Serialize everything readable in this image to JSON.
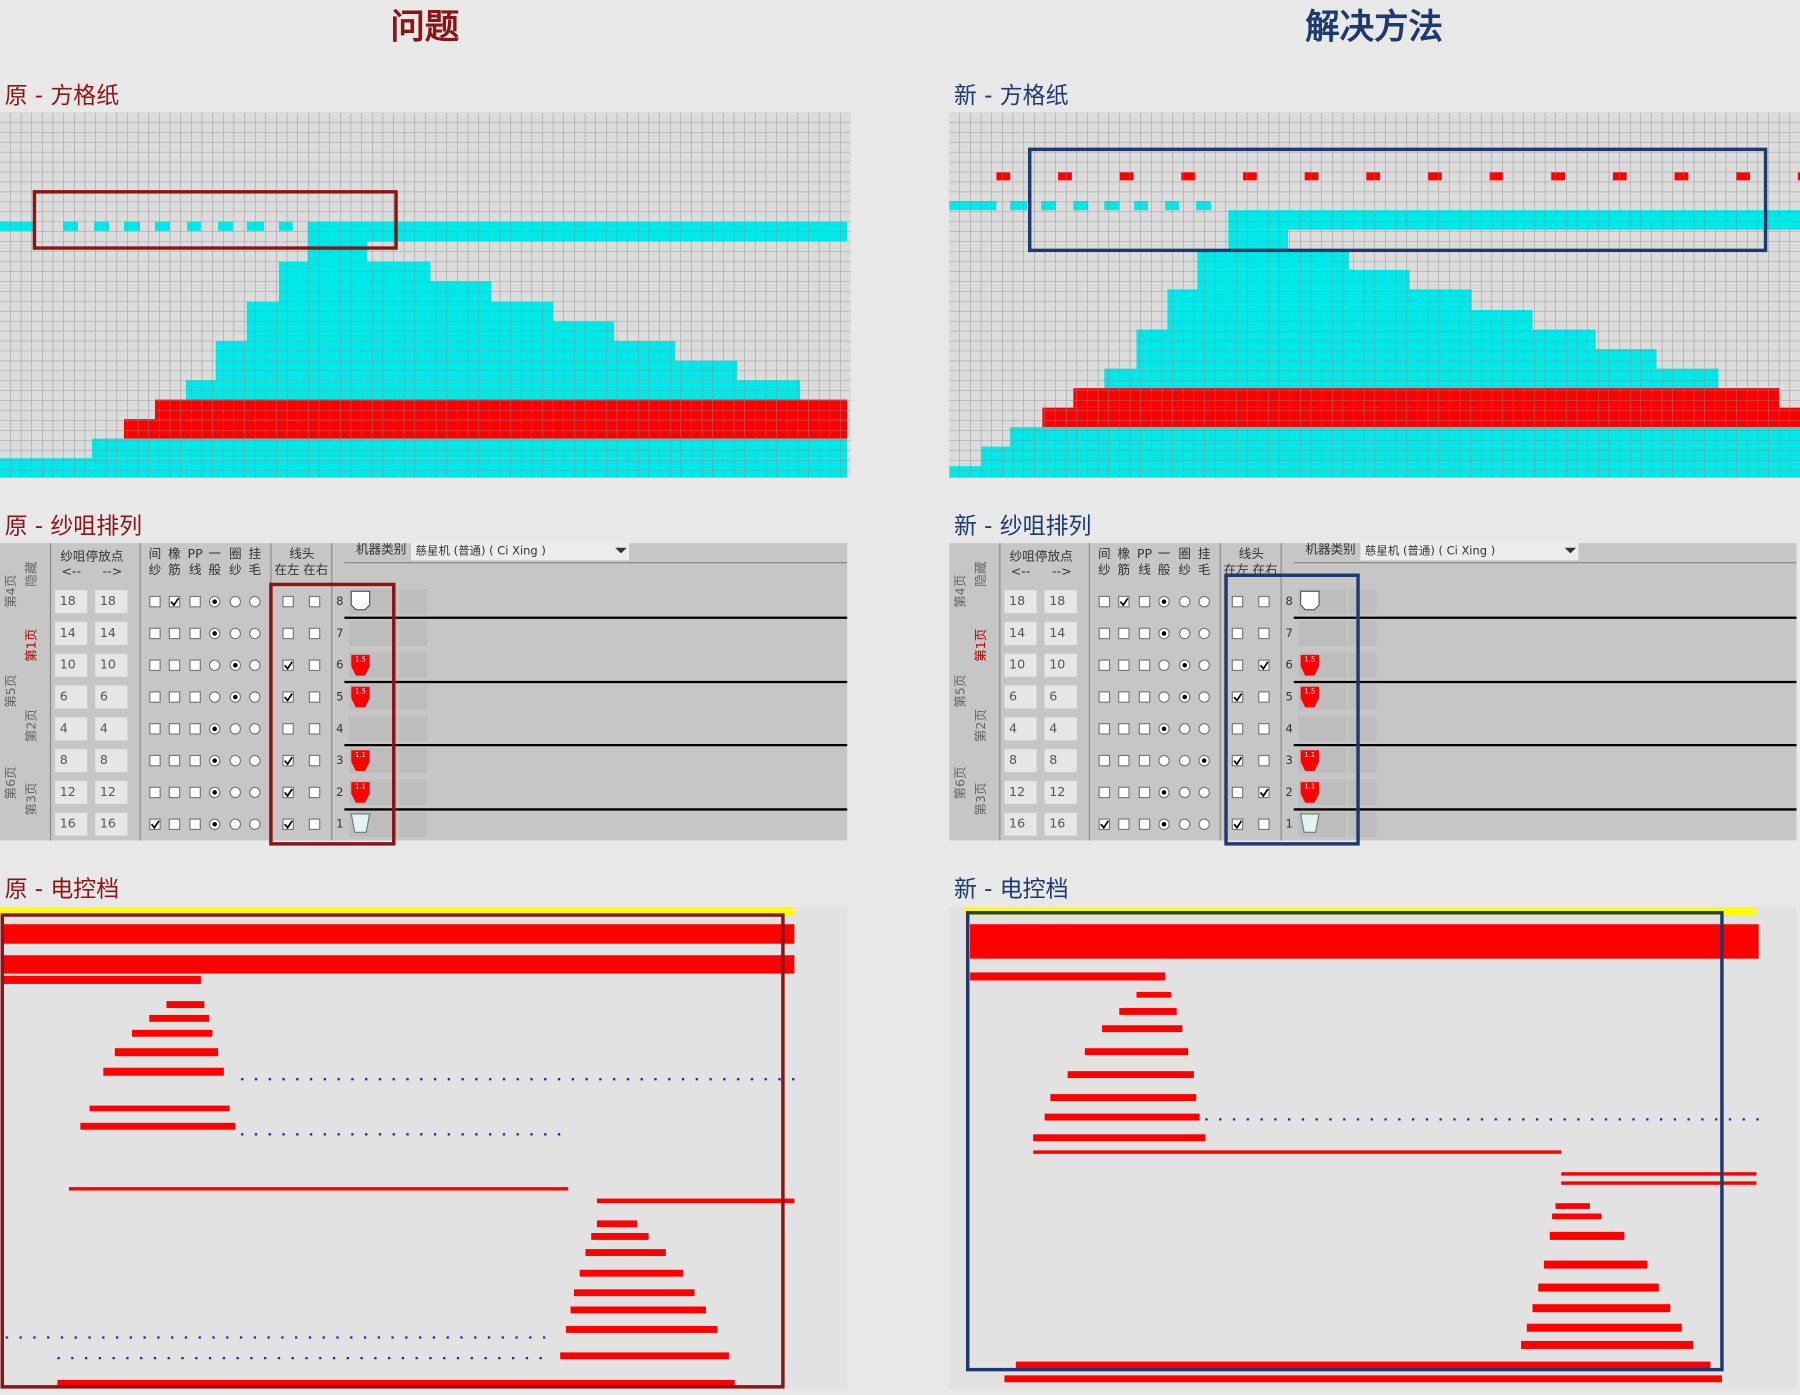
{
  "header": {
    "problem": "问题",
    "solution": "解决方法"
  },
  "table": {
    "stop_header": "纱咀停放点",
    "left_arrow": "<--",
    "right_arrow": "-->",
    "columns": [
      [
        "间",
        "纱"
      ],
      [
        "橡",
        "筋"
      ],
      [
        "PP",
        "线"
      ],
      [
        "一",
        "般"
      ],
      [
        "圈",
        "纱"
      ],
      [
        "挂",
        "毛"
      ]
    ],
    "linehead": "线头",
    "left": "在左",
    "right": "在右",
    "machine_label": "机器类别",
    "machine": "慈星机 (普通) ( Ci Xing )",
    "side_labels": [
      "第4页",
      "隐藏",
      "第1页",
      "第5页",
      "第2页",
      "第6页",
      "第3页"
    ],
    "rows": [
      {
        "no": 8,
        "stop": [
          18,
          18
        ]
      },
      {
        "no": 7,
        "stop": [
          14,
          14
        ]
      },
      {
        "no": 6,
        "stop": [
          10,
          10
        ],
        "cone": "1.5"
      },
      {
        "no": 5,
        "stop": [
          6,
          6
        ],
        "cone": "1.5"
      },
      {
        "no": 4,
        "stop": [
          4,
          4
        ]
      },
      {
        "no": 3,
        "stop": [
          8,
          8
        ],
        "cone": "1.1"
      },
      {
        "no": 2,
        "stop": [
          12,
          12
        ],
        "cone": "1.1"
      },
      {
        "no": 1,
        "stop": [
          16,
          16
        ]
      }
    ]
  },
  "panels": [
    {
      "grid_title": "原 - 方格纸",
      "table_title": "原 - 纱咀排列",
      "control_title": "原 -  电控档",
      "checks": [
        [
          false,
          true,
          false
        ],
        [
          false,
          false,
          false
        ],
        [
          false,
          false,
          false
        ],
        [
          false,
          false,
          false
        ],
        [
          false,
          false,
          false
        ],
        [
          false,
          false,
          false
        ],
        [
          false,
          false,
          false
        ],
        [
          true,
          false,
          false
        ]
      ],
      "radio": [
        0,
        0,
        1,
        1,
        0,
        0,
        0,
        0
      ],
      "linehead": [
        [
          false,
          false
        ],
        [
          false,
          false
        ],
        [
          true,
          false
        ],
        [
          true,
          false
        ],
        [
          false,
          false
        ],
        [
          true,
          false
        ],
        [
          true,
          false
        ],
        [
          true,
          false
        ]
      ]
    },
    {
      "grid_title": "新 - 方格纸",
      "table_title": "新 - 纱咀排列",
      "control_title": "新 - 电控档",
      "checks": [
        [
          false,
          true,
          false
        ],
        [
          false,
          false,
          false
        ],
        [
          false,
          false,
          false
        ],
        [
          false,
          false,
          false
        ],
        [
          false,
          false,
          false
        ],
        [
          false,
          false,
          false
        ],
        [
          false,
          false,
          false
        ],
        [
          true,
          false,
          false
        ]
      ],
      "radio": [
        0,
        0,
        1,
        1,
        0,
        2,
        0,
        0
      ],
      "linehead": [
        [
          false,
          false
        ],
        [
          false,
          false
        ],
        [
          false,
          true
        ],
        [
          true,
          false
        ],
        [
          false,
          false
        ],
        [
          true,
          false
        ],
        [
          false,
          true
        ],
        [
          true,
          false
        ]
      ]
    }
  ]
}
